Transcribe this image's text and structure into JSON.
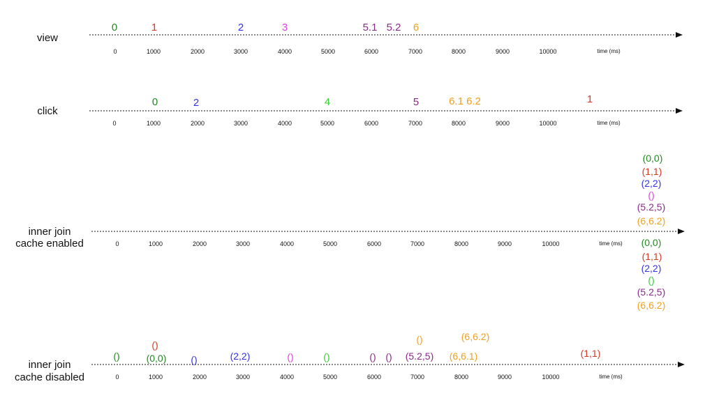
{
  "colors": {
    "green": "#1e8a1e",
    "red": "#d63a1f",
    "blue": "#3232e6",
    "magenta": "#e040e0",
    "lime": "#33cc33",
    "purple": "#8a2a8a",
    "orange": "#f0a020"
  },
  "ticks": [
    "0",
    "1000",
    "2000",
    "3000",
    "4000",
    "5000",
    "6000",
    "7000",
    "8000",
    "9000",
    "10000"
  ],
  "unit": "time (ms)",
  "rows": [
    {
      "label": [
        "view"
      ],
      "events": [
        {
          "text": "0",
          "color": "green"
        },
        {
          "text": "1",
          "color": "red"
        },
        {
          "text": "2",
          "color": "blue"
        },
        {
          "text": "3",
          "color": "magenta"
        },
        {
          "text": "5.1",
          "color": "purple"
        },
        {
          "text": "5.2",
          "color": "purple"
        },
        {
          "text": "6",
          "color": "orange"
        }
      ]
    },
    {
      "label": [
        "click"
      ],
      "events": [
        {
          "text": "0",
          "color": "green"
        },
        {
          "text": "2",
          "color": "blue"
        },
        {
          "text": "4",
          "color": "lime"
        },
        {
          "text": "5",
          "color": "purple"
        },
        {
          "text": "6.1 6.2",
          "color": "orange"
        },
        {
          "text": "1",
          "color": "red"
        }
      ]
    },
    {
      "label": [
        "inner join",
        "cache enabled"
      ],
      "events": [
        {
          "text": "(0,0)",
          "color": "green"
        },
        {
          "text": "(1,1)",
          "color": "red"
        },
        {
          "text": "(2,2)",
          "color": "blue"
        },
        {
          "text": "()",
          "color": "magenta"
        },
        {
          "text": "(5.2,5)",
          "color": "purple"
        },
        {
          "text": "(6,6.2)",
          "color": "orange"
        },
        {
          "text": "(0,0)",
          "color": "green"
        },
        {
          "text": "(1,1)",
          "color": "red"
        },
        {
          "text": "(2,2)",
          "color": "blue"
        },
        {
          "text": "()",
          "color": "lime"
        },
        {
          "text": "(5.2,5)",
          "color": "purple"
        },
        {
          "text": "(6,6.2)",
          "color": "orange"
        }
      ]
    },
    {
      "label": [
        "inner join",
        "cache disabled"
      ],
      "events": [
        {
          "text": "()",
          "color": "green"
        },
        {
          "text": "()",
          "color": "red"
        },
        {
          "text": "(0,0)",
          "color": "green"
        },
        {
          "text": "()",
          "color": "blue"
        },
        {
          "text": "(2,2)",
          "color": "blue"
        },
        {
          "text": "()",
          "color": "magenta"
        },
        {
          "text": "()",
          "color": "lime"
        },
        {
          "text": "()",
          "color": "purple"
        },
        {
          "text": "()",
          "color": "purple"
        },
        {
          "text": "()",
          "color": "orange"
        },
        {
          "text": "(5.2,5)",
          "color": "purple"
        },
        {
          "text": "(6,6.2)",
          "color": "orange"
        },
        {
          "text": "(6,6.1)",
          "color": "orange"
        },
        {
          "text": "(1,1)",
          "color": "red"
        }
      ]
    }
  ]
}
